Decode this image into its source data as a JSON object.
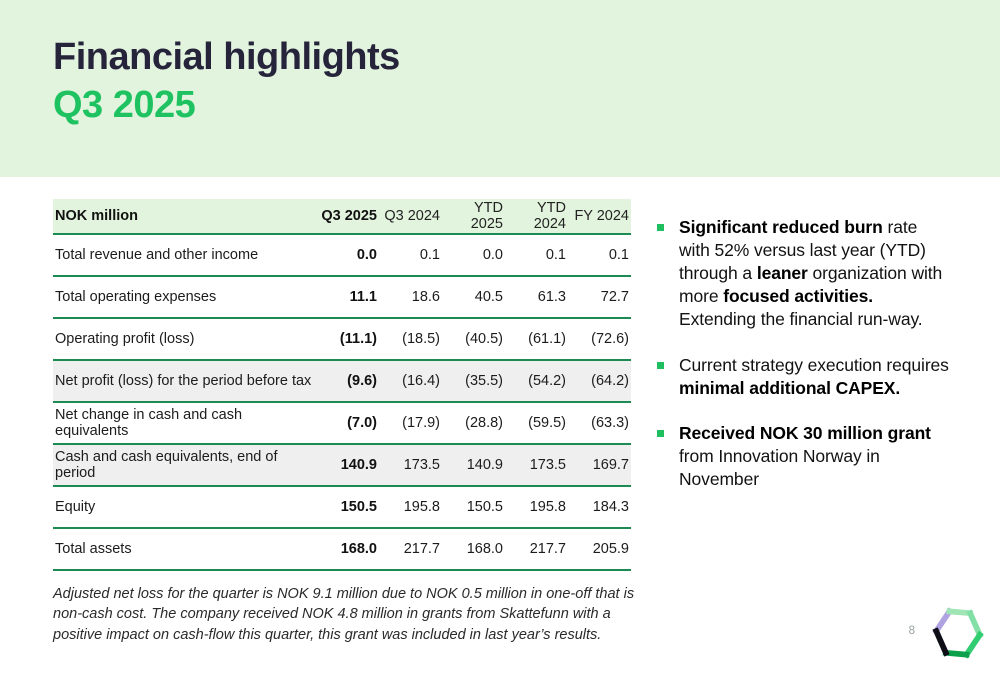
{
  "slide": {
    "title_line1": "Financial highlights",
    "title_line2": "Q3 2025",
    "page_number": "8"
  },
  "colors": {
    "banner_bg": "#e2f4de",
    "title_color": "#26243b",
    "accent_green": "#1fc261",
    "line_green": "#1b8a53",
    "shaded_row": "#efefef",
    "bullet_green": "#1fbe5f"
  },
  "table": {
    "unit_label": "NOK million",
    "columns": [
      "Q3 2025",
      "Q3 2024",
      "YTD 2025",
      "YTD 2024",
      "FY 2024"
    ],
    "rows": [
      {
        "label": "Total revenue and other income",
        "values": [
          "0.0",
          "0.1",
          "0.0",
          "0.1",
          "0.1"
        ],
        "shaded": false
      },
      {
        "label": "Total operating expenses",
        "values": [
          "11.1",
          "18.6",
          "40.5",
          "61.3",
          "72.7"
        ],
        "shaded": false
      },
      {
        "label": "Operating profit (loss)",
        "values": [
          "(11.1)",
          "(18.5)",
          "(40.5)",
          "(61.1)",
          "(72.6)"
        ],
        "shaded": false
      },
      {
        "label": "Net profit (loss) for the period before tax",
        "values": [
          "(9.6)",
          "(16.4)",
          "(35.5)",
          "(54.2)",
          "(64.2)"
        ],
        "shaded": true
      },
      {
        "label": "Net change in cash and cash equivalents",
        "values": [
          "(7.0)",
          "(17.9)",
          "(28.8)",
          "(59.5)",
          "(63.3)"
        ],
        "shaded": false
      },
      {
        "label": "Cash and cash equivalents, end of period",
        "values": [
          "140.9",
          "173.5",
          "140.9",
          "173.5",
          "169.7"
        ],
        "shaded": true
      },
      {
        "label": "Equity",
        "values": [
          "150.5",
          "195.8",
          "150.5",
          "195.8",
          "184.3"
        ],
        "shaded": false
      },
      {
        "label": "Total assets",
        "values": [
          "168.0",
          "217.7",
          "168.0",
          "217.7",
          "205.9"
        ],
        "shaded": false
      }
    ],
    "footnote": "Adjusted net loss for the quarter is NOK 9.1 million due to NOK 0.5 million in one-off that is non-cash cost. The company received NOK 4.8 million in grants from Skattefunn with a positive impact on cash-flow this quarter, this grant was included in last year’s results."
  },
  "highlights": {
    "bullets": [
      {
        "segments": [
          {
            "text": "Significant reduced burn",
            "bold": true
          },
          {
            "text": " rate with 52% versus last year (YTD) through a ",
            "bold": false
          },
          {
            "text": "leaner",
            "bold": true
          },
          {
            "text": " organization with more ",
            "bold": false
          },
          {
            "text": "focused activities.",
            "bold": true
          },
          {
            "text": " Extending the financial run-way.",
            "bold": false
          }
        ]
      },
      {
        "segments": [
          {
            "text": "Current strategy execution requires ",
            "bold": false
          },
          {
            "text": "minimal additional CAPEX.",
            "bold": true
          }
        ]
      },
      {
        "segments": [
          {
            "text": "Received NOK 30 million grant",
            "bold": true
          },
          {
            "text": " from Innovation Norway in November",
            "bold": false
          }
        ]
      }
    ]
  },
  "logo": {
    "name": "hexagon-logo",
    "edge_colors": {
      "top": "#9fe5b5",
      "upper_right": "#82dfa6",
      "lower_right": "#31cd71",
      "bottom": "#0ca04c",
      "lower_left": "#0e0e16",
      "upper_left": "#b0a3e2"
    }
  }
}
